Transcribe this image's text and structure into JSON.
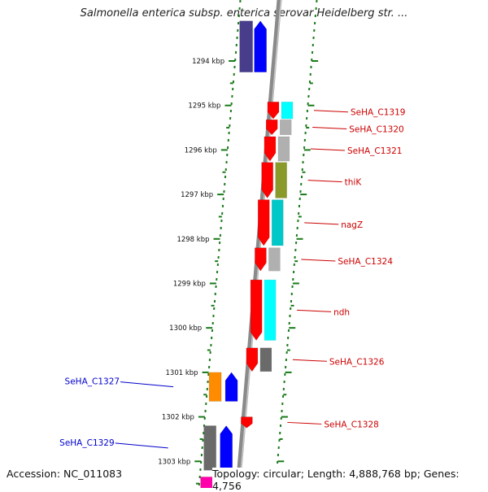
{
  "title": "Salmonella enterica subsp. enterica serovar Heidelberg str. ...",
  "footer": {
    "accession": "Accession: NC_011083",
    "topology": "Topology: circular; Length: 4,888,768 bp; Genes: 4,756"
  },
  "colors": {
    "backbone": "#8a8a8a",
    "cds_forward": "#ff0000",
    "cds_reverse": "#0000ff",
    "cds_reverse_dark": "#483d8b",
    "label_forward": "#cc0000",
    "label_reverse": "#0000cc",
    "tick": "#1a7a1a",
    "cog_teal": "#00c8c8",
    "cog_cyan": "#00ffff",
    "cog_olive": "#8a9a2a",
    "cog_gray": "#b0b0b0",
    "cog_dark": "#6a6a6a",
    "cog_orange": "#ff8c00",
    "cog_magenta": "#ff00aa"
  },
  "ticks": [
    {
      "kbp": 1294,
      "label": "1294 kbp"
    },
    {
      "kbp": 1295,
      "label": "1295 kbp"
    },
    {
      "kbp": 1296,
      "label": "1296 kbp"
    },
    {
      "kbp": 1297,
      "label": "1297 kbp"
    },
    {
      "kbp": 1298,
      "label": "1298 kbp"
    },
    {
      "kbp": 1299,
      "label": "1299 kbp"
    },
    {
      "kbp": 1300,
      "label": "1300 kbp"
    },
    {
      "kbp": 1301,
      "label": "1301 kbp"
    },
    {
      "kbp": 1302,
      "label": "1302 kbp"
    },
    {
      "kbp": 1303,
      "label": "1303 kbp"
    }
  ],
  "forward_genes": [
    {
      "label": "SeHA_C1319",
      "start_kbp": 1294.92,
      "end_kbp": 1295.3,
      "cog_color": "cog_cyan"
    },
    {
      "label": "SeHA_C1320",
      "start_kbp": 1295.32,
      "end_kbp": 1295.66,
      "cog_color": "cog_gray"
    },
    {
      "label": "SeHA_C1321",
      "start_kbp": 1295.7,
      "end_kbp": 1296.25,
      "cog_color": "cog_gray"
    },
    {
      "label": "thiK",
      "start_kbp": 1296.28,
      "end_kbp": 1297.08,
      "cog_color": "cog_olive"
    },
    {
      "label": "nagZ",
      "start_kbp": 1297.12,
      "end_kbp": 1298.15,
      "cog_color": "cog_teal"
    },
    {
      "label": "SeHA_C1324",
      "start_kbp": 1298.2,
      "end_kbp": 1298.72,
      "cog_color": "cog_gray"
    },
    {
      "label": "ndh",
      "start_kbp": 1298.92,
      "end_kbp": 1300.28,
      "cog_color": "cog_cyan"
    },
    {
      "label": "SeHA_C1326",
      "start_kbp": 1300.45,
      "end_kbp": 1300.98,
      "cog_color": "cog_dark"
    },
    {
      "label": "SeHA_C1328",
      "start_kbp": 1302.0,
      "end_kbp": 1302.25,
      "cog_color": ""
    }
  ],
  "reverse_genes": [
    {
      "label": "",
      "start_kbp": 1293.1,
      "end_kbp": 1294.25,
      "cog_color": "cog_reverse_dark"
    },
    {
      "label": "SeHA_C1327",
      "start_kbp": 1301.0,
      "end_kbp": 1301.65,
      "cog_color": "cog_orange"
    },
    {
      "label": "SeHA_C1329",
      "start_kbp": 1302.2,
      "end_kbp": 1303.2,
      "cog_color": "cog_dark"
    },
    {
      "label": "",
      "start_kbp": 1303.35,
      "end_kbp": 1303.8,
      "cog_color": "cog_magenta"
    }
  ]
}
